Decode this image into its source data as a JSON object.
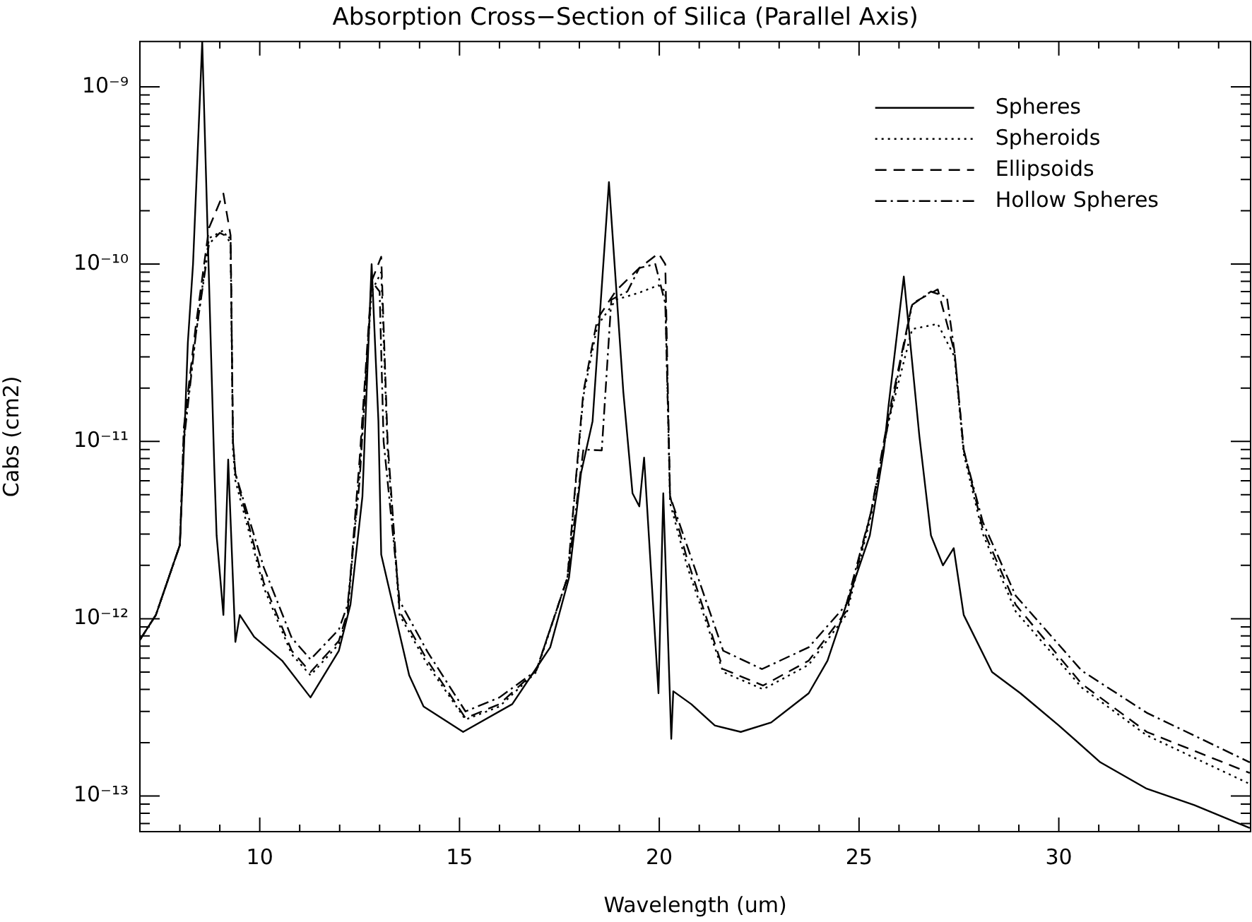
{
  "chart_data": {
    "type": "line",
    "title": "Absorption Cross−Section of Silica (Parallel Axis)",
    "xlabel": "Wavelength (um)",
    "ylabel": "Cabs (cm2)",
    "log": "y",
    "grid": false,
    "legend": "top right",
    "marker": "none",
    "xlim": [
      7,
      34.8
    ],
    "xticks": [
      {
        "value": 7,
        "label": null
      },
      {
        "value": 8,
        "label": null
      },
      {
        "value": 9,
        "label": null
      },
      10,
      {
        "value": 11,
        "label": null
      },
      {
        "value": 12,
        "label": null
      },
      {
        "value": 13,
        "label": null
      },
      {
        "value": 14,
        "label": null
      },
      15,
      {
        "value": 16,
        "label": null
      },
      {
        "value": 17,
        "label": null
      },
      {
        "value": 18,
        "label": null
      },
      {
        "value": 19,
        "label": null
      },
      20,
      {
        "value": 21,
        "label": null
      },
      {
        "value": 22,
        "label": null
      },
      {
        "value": 23,
        "label": null
      },
      {
        "value": 24,
        "label": null
      },
      25,
      {
        "value": 26,
        "label": null
      },
      {
        "value": 27,
        "label": null
      },
      {
        "value": 28,
        "label": null
      },
      {
        "value": 29,
        "label": null
      },
      30,
      {
        "value": 31,
        "label": null
      },
      {
        "value": 32,
        "label": null
      },
      {
        "value": 33,
        "label": null
      },
      {
        "value": 34,
        "label": null
      }
    ],
    "ylim": [
      6.3e-14,
      1.8e-09
    ],
    "yticks": [
      {
        "value": 7e-14,
        "label": null
      },
      {
        "value": 8e-14,
        "label": null
      },
      {
        "value": 9e-14,
        "label": null
      },
      {
        "value": 1e-13,
        "label": "10⁻¹³"
      },
      {
        "value": 2e-13,
        "label": null
      },
      {
        "value": 3e-13,
        "label": null
      },
      {
        "value": 4e-13,
        "label": null
      },
      {
        "value": 5e-13,
        "label": null
      },
      {
        "value": 6e-13,
        "label": null
      },
      {
        "value": 7e-13,
        "label": null
      },
      {
        "value": 8e-13,
        "label": null
      },
      {
        "value": 9e-13,
        "label": null
      },
      {
        "value": 1e-12,
        "label": "10⁻¹²"
      },
      {
        "value": 2e-12,
        "label": null
      },
      {
        "value": 3e-12,
        "label": null
      },
      {
        "value": 4e-12,
        "label": null
      },
      {
        "value": 5e-12,
        "label": null
      },
      {
        "value": 6e-12,
        "label": null
      },
      {
        "value": 7e-12,
        "label": null
      },
      {
        "value": 8e-12,
        "label": null
      },
      {
        "value": 9e-12,
        "label": null
      },
      {
        "value": 1e-11,
        "label": "10⁻¹¹"
      },
      {
        "value": 2e-11,
        "label": null
      },
      {
        "value": 3e-11,
        "label": null
      },
      {
        "value": 4e-11,
        "label": null
      },
      {
        "value": 5e-11,
        "label": null
      },
      {
        "value": 6e-11,
        "label": null
      },
      {
        "value": 7e-11,
        "label": null
      },
      {
        "value": 8e-11,
        "label": null
      },
      {
        "value": 9e-11,
        "label": null
      },
      {
        "value": 1e-10,
        "label": "10⁻¹⁰"
      },
      {
        "value": 2e-10,
        "label": null
      },
      {
        "value": 3e-10,
        "label": null
      },
      {
        "value": 4e-10,
        "label": null
      },
      {
        "value": 5e-10,
        "label": null
      },
      {
        "value": 6e-10,
        "label": null
      },
      {
        "value": 7e-10,
        "label": null
      },
      {
        "value": 8e-10,
        "label": null
      },
      {
        "value": 9e-10,
        "label": null
      },
      {
        "value": 1e-09,
        "label": "10⁻⁹"
      }
    ],
    "series": [
      {
        "name": "Spheres",
        "color": "#000000",
        "line_style": "solid",
        "x": [
          7,
          7.4,
          8.0,
          8.1,
          8.2,
          8.33,
          8.56,
          8.86,
          8.92,
          9.09,
          9.21,
          9.39,
          9.5,
          9.86,
          10.56,
          11.27,
          11.98,
          12.27,
          12.57,
          12.8,
          12.97,
          13.04,
          13.74,
          14.1,
          15.09,
          16.32,
          17.27,
          17.74,
          18.04,
          18.33,
          18.74,
          19.1,
          19.33,
          19.5,
          19.62,
          19.98,
          20.1,
          20.3,
          20.35,
          20.8,
          21.39,
          22.04,
          22.8,
          23.74,
          24.21,
          24.68,
          25.27,
          25.62,
          25.74,
          26.12,
          26.51,
          26.8,
          27.1,
          27.37,
          27.62,
          28.33,
          29.04,
          30.0,
          31.04,
          32.2,
          33.39,
          34.78
        ],
        "values": [
          7.6e-13,
          1.05e-12,
          2.6e-12,
          8.9e-12,
          3.6e-11,
          1e-10,
          1.8e-09,
          7.4e-12,
          2.95e-12,
          1.05e-12,
          7.9e-12,
          7.4e-13,
          1.05e-12,
          7.9e-13,
          5.8e-13,
          3.6e-13,
          6.6e-13,
          1.2e-12,
          4.9e-12,
          1e-10,
          1.3e-11,
          2.3e-12,
          4.8e-13,
          3.2e-13,
          2.3e-13,
          3.3e-13,
          6.9e-13,
          1.7e-12,
          6.6e-12,
          1.3e-11,
          2.9e-10,
          1.9e-11,
          5.1e-12,
          4.3e-12,
          8.1e-12,
          3.8e-13,
          5.1e-12,
          2.1e-13,
          3.9e-13,
          3.3e-13,
          2.5e-13,
          2.3e-13,
          2.6e-13,
          3.8e-13,
          5.8e-13,
          1.2e-12,
          2.95e-12,
          8.9e-12,
          1.6e-11,
          8.5e-11,
          1.07e-11,
          2.95e-12,
          2e-12,
          2.5e-12,
          1.05e-12,
          5e-13,
          3.8e-13,
          2.5e-13,
          1.55e-13,
          1.1e-13,
          8.9e-14,
          6.6e-14
        ]
      },
      {
        "name": "Spheroids",
        "color": "#000000",
        "line_style": "dotted",
        "x": [
          7,
          7.4,
          8.0,
          8.1,
          8.4,
          8.73,
          9.09,
          9.27,
          9.33,
          9.39,
          10.1,
          10.8,
          11.27,
          11.98,
          12.2,
          12.5,
          12.8,
          13.04,
          13.2,
          13.5,
          14.2,
          15.15,
          16.0,
          16.92,
          17.7,
          18.1,
          18.45,
          18.92,
          19.5,
          19.98,
          20.15,
          20.27,
          20.69,
          21.6,
          22.6,
          23.74,
          24.68,
          25.3,
          25.74,
          26.33,
          26.97,
          27.39,
          27.62,
          28.1,
          28.92,
          30.57,
          32.2,
          34.78
        ],
        "values": [
          7.6e-13,
          1.05e-12,
          2.6e-12,
          1.1e-11,
          4e-11,
          1.4e-10,
          1.55e-10,
          1.3e-10,
          9e-12,
          6e-12,
          1.5e-12,
          6.3e-13,
          4.8e-13,
          7.2e-13,
          1.05e-12,
          7e-12,
          7e-11,
          9e-11,
          9e-12,
          1.05e-12,
          5.5e-13,
          2.7e-13,
          3.2e-13,
          5e-13,
          1.7e-12,
          1.8e-11,
          4.5e-11,
          6.3e-11,
          6.9e-11,
          7.6e-11,
          7e-11,
          4.5e-12,
          2e-12,
          5e-13,
          4e-13,
          5.5e-13,
          1.05e-12,
          3.8e-12,
          1.3e-11,
          4.3e-11,
          4.6e-11,
          3e-11,
          8.5e-12,
          3e-12,
          1.1e-12,
          4.1e-13,
          2.2e-13,
          1.17e-13
        ]
      },
      {
        "name": "Ellipsoids",
        "color": "#000000",
        "line_style": "dashed",
        "x": [
          7,
          7.4,
          8.0,
          8.1,
          8.4,
          8.73,
          9.09,
          9.27,
          9.33,
          9.39,
          10.1,
          10.8,
          11.27,
          11.98,
          12.2,
          12.5,
          12.8,
          13.04,
          13.2,
          13.5,
          14.2,
          15.15,
          16.0,
          16.92,
          17.7,
          18.1,
          18.45,
          18.92,
          19.5,
          19.98,
          20.15,
          20.27,
          20.69,
          21.6,
          22.6,
          23.74,
          24.68,
          25.3,
          25.74,
          26.33,
          26.97,
          27.39,
          27.62,
          28.1,
          28.92,
          30.57,
          32.2,
          34.78
        ],
        "values": [
          7.6e-13,
          1.05e-12,
          2.6e-12,
          1.2e-11,
          4.5e-11,
          1.6e-10,
          2.5e-10,
          1.45e-10,
          1e-11,
          6.6e-12,
          1.6e-12,
          6.6e-13,
          5e-13,
          7.5e-13,
          1.1e-12,
          8e-12,
          8e-11,
          1.1e-10,
          1e-11,
          1.1e-12,
          5.8e-13,
          2.75e-13,
          3.3e-13,
          5.1e-13,
          1.7e-12,
          1.9e-11,
          4.9e-11,
          7.1e-11,
          9.5e-11,
          1.15e-10,
          1e-10,
          4.9e-12,
          2.2e-12,
          5.2e-13,
          4.2e-13,
          5.8e-13,
          1.1e-12,
          4e-12,
          1.4e-11,
          6e-11,
          7.2e-11,
          3.2e-11,
          9e-12,
          3.2e-12,
          1.2e-12,
          4.3e-13,
          2.3e-13,
          1.35e-13
        ]
      },
      {
        "name": "Hollow Spheres",
        "color": "#000000",
        "line_style": "dashdot",
        "x": [
          7,
          7.4,
          8.0,
          8.1,
          8.4,
          8.73,
          9.0,
          9.27,
          9.33,
          9.39,
          10.1,
          10.8,
          11.27,
          11.98,
          12.2,
          12.5,
          12.8,
          13.0,
          13.1,
          13.5,
          14.2,
          15.15,
          16.0,
          16.92,
          17.7,
          18.1,
          18.56,
          18.8,
          19.2,
          19.5,
          19.9,
          20.15,
          20.27,
          20.69,
          21.6,
          22.57,
          23.74,
          24.68,
          25.3,
          25.74,
          26.33,
          26.8,
          27.2,
          27.39,
          27.62,
          28.1,
          28.92,
          30.57,
          32.2,
          34.78
        ],
        "values": [
          7.6e-13,
          1.05e-12,
          2.6e-12,
          1e-11,
          4e-11,
          1.3e-10,
          1.5e-10,
          1.4e-10,
          1e-11,
          6.6e-12,
          1.95e-12,
          7.8e-13,
          5.9e-13,
          8.7e-13,
          1.2e-12,
          6e-12,
          8e-11,
          7e-11,
          1e-11,
          1.26e-12,
          6.5e-13,
          3e-13,
          3.6e-13,
          5.1e-13,
          1.7e-12,
          9e-12,
          8.9e-12,
          6.3e-11,
          7e-11,
          9.5e-11,
          1e-10,
          6e-11,
          4.9e-12,
          2.6e-12,
          6.6e-13,
          5.2e-13,
          6.9e-13,
          1.2e-12,
          4e-12,
          1.3e-11,
          5.9e-11,
          7e-11,
          6.5e-11,
          3.2e-11,
          8.9e-12,
          3.5e-12,
          1.35e-12,
          5.1e-13,
          2.95e-13,
          1.55e-13
        ]
      }
    ]
  }
}
